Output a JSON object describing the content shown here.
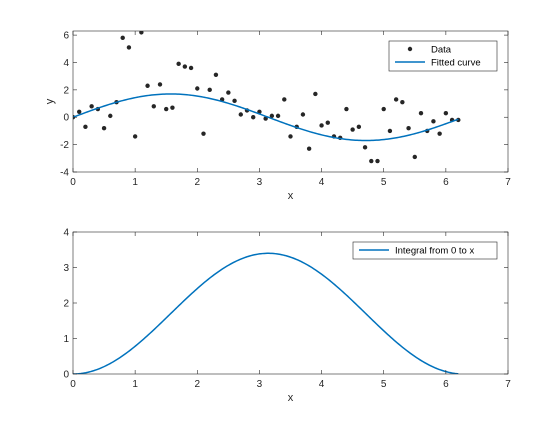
{
  "chart_data": [
    {
      "type": "scatter+line",
      "xlabel": "x",
      "ylabel": "y",
      "xlim": [
        0,
        7
      ],
      "ylim": [
        -4,
        6.3
      ],
      "xticks": [
        0,
        1,
        2,
        3,
        4,
        5,
        6,
        7
      ],
      "yticks": [
        -4,
        -2,
        0,
        2,
        4,
        6
      ],
      "legend_position": "top-right",
      "series": [
        {
          "name": "Data",
          "kind": "markers",
          "color": "#262626",
          "x": [
            0.0,
            0.1,
            0.2,
            0.3,
            0.4,
            0.5,
            0.6,
            0.7,
            0.8,
            0.9,
            1.0,
            1.1,
            1.2,
            1.3,
            1.4,
            1.5,
            1.6,
            1.7,
            1.8,
            1.9,
            2.0,
            2.1,
            2.2,
            2.3,
            2.4,
            2.5,
            2.6,
            2.7,
            2.8,
            2.9,
            3.0,
            3.1,
            3.2,
            3.3,
            3.4,
            3.5,
            3.6,
            3.7,
            3.8,
            3.9,
            4.0,
            4.1,
            4.2,
            4.3,
            4.4,
            4.5,
            4.6,
            4.7,
            4.8,
            4.9,
            5.0,
            5.1,
            5.2,
            5.3,
            5.4,
            5.5,
            5.6,
            5.7,
            5.8,
            5.9,
            6.0,
            6.1,
            6.2
          ],
          "y": [
            0.0,
            0.4,
            -0.7,
            0.8,
            0.6,
            -0.8,
            0.1,
            1.1,
            5.8,
            5.1,
            -1.4,
            6.2,
            2.3,
            0.8,
            2.4,
            0.6,
            0.7,
            3.9,
            3.7,
            3.6,
            2.1,
            -1.2,
            2.0,
            3.1,
            1.3,
            1.8,
            1.2,
            0.2,
            0.5,
            0.0,
            0.4,
            -0.1,
            0.1,
            0.1,
            1.3,
            -1.4,
            -0.7,
            0.2,
            -2.3,
            1.7,
            -0.6,
            -0.4,
            -1.4,
            -1.5,
            0.6,
            -0.9,
            -0.7,
            -2.2,
            -3.2,
            -3.2,
            0.6,
            -1.0,
            1.3,
            1.1,
            -0.8,
            -2.9,
            0.3,
            -1.0,
            -0.3,
            -1.2,
            0.3,
            -0.2,
            -0.2
          ]
        },
        {
          "name": "Fitted curve",
          "kind": "line",
          "color": "#0072BD",
          "formula": "1.7*sin(x)",
          "x_range": [
            0,
            6.2
          ],
          "amplitude": 1.7
        }
      ]
    },
    {
      "type": "line",
      "xlabel": "x",
      "ylabel": "",
      "xlim": [
        0,
        7
      ],
      "ylim": [
        0,
        4
      ],
      "xticks": [
        0,
        1,
        2,
        3,
        4,
        5,
        6,
        7
      ],
      "yticks": [
        0,
        1,
        2,
        3,
        4
      ],
      "legend_position": "top-right",
      "series": [
        {
          "name": "Integral from 0 to x",
          "kind": "line",
          "color": "#0072BD",
          "formula": "1.7*(1-cos(x))",
          "x_range": [
            0,
            6.2
          ],
          "amplitude": 1.7,
          "peak": 3.4
        }
      ]
    }
  ]
}
